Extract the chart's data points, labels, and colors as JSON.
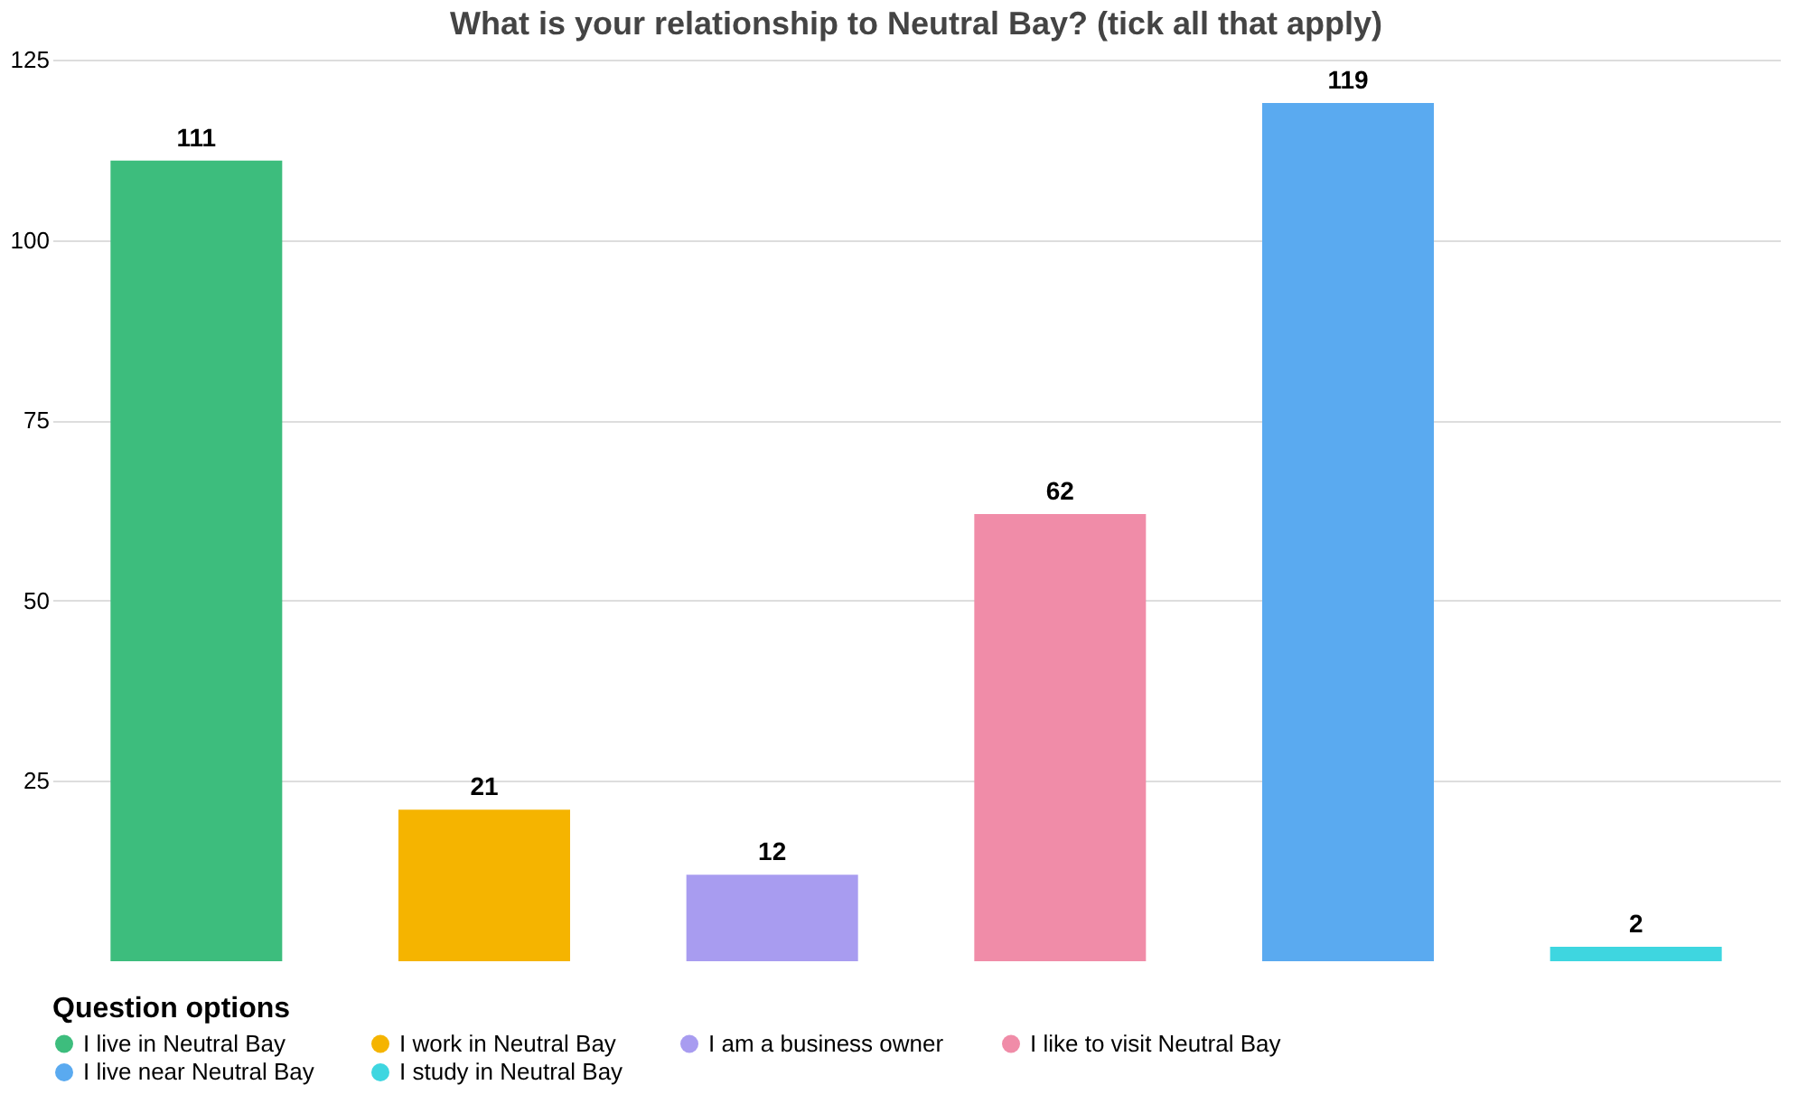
{
  "chart_data": {
    "type": "bar",
    "title": "What is your relationship to Neutral Bay? (tick all that apply)",
    "categories": [
      null,
      null,
      null,
      null,
      null,
      null
    ],
    "series": [
      {
        "name": "I live in Neutral Bay",
        "color": "#3dbd7d",
        "values": [
          111,
          null,
          null,
          null,
          null,
          null
        ]
      },
      {
        "name": "I work in Neutral Bay",
        "color": "#f5b400",
        "values": [
          null,
          21,
          null,
          null,
          null,
          null
        ]
      },
      {
        "name": "I am a business owner",
        "color": "#a89cf0",
        "values": [
          null,
          null,
          12,
          null,
          null,
          null
        ]
      },
      {
        "name": "I like to visit Neutral Bay",
        "color": "#f08ca8",
        "values": [
          null,
          null,
          null,
          62,
          null,
          null
        ]
      },
      {
        "name": "I live near Neutral Bay",
        "color": "#5aaaf0",
        "values": [
          null,
          null,
          null,
          null,
          119,
          null
        ]
      },
      {
        "name": "I study in Neutral Bay",
        "color": "#3ed6e0",
        "values": [
          null,
          null,
          null,
          null,
          null,
          2
        ]
      }
    ],
    "ylim": [
      0,
      125
    ],
    "yticks": [
      25,
      50,
      75,
      100,
      125
    ],
    "grid": "y",
    "data_labels": true,
    "legend": "bottom",
    "legend_title": "Question options",
    "tick_labels": "y"
  }
}
